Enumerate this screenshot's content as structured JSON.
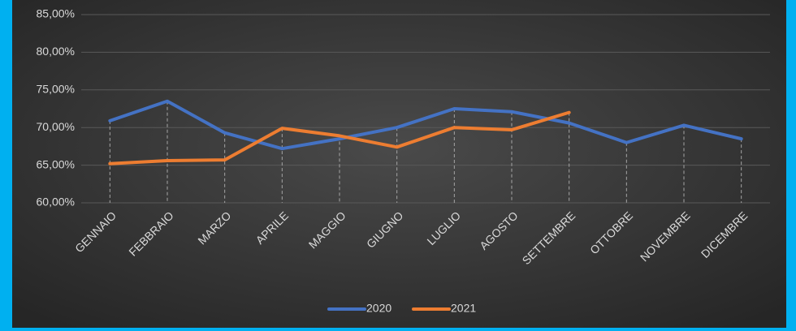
{
  "chart_data": {
    "type": "line",
    "categories": [
      "GENNAIO",
      "FEBBRAIO",
      "MARZO",
      "APRILE",
      "MAGGIO",
      "GIUGNO",
      "LUGLIO",
      "AGOSTO",
      "SETTEMBRE",
      "OTTOBRE",
      "NOVEMBRE",
      "DICEMBRE"
    ],
    "series": [
      {
        "name": "2020",
        "color": "#4472c4",
        "values": [
          70.9,
          73.5,
          69.3,
          67.2,
          68.5,
          70.0,
          72.5,
          72.1,
          70.6,
          68.0,
          70.3,
          68.5
        ]
      },
      {
        "name": "2021",
        "color": "#ed7d31",
        "values": [
          65.2,
          65.6,
          65.7,
          69.9,
          68.9,
          67.4,
          70.0,
          69.7,
          72.0,
          null,
          null,
          null
        ]
      }
    ],
    "ylim": [
      60,
      85
    ],
    "yticks": [
      {
        "value": 60,
        "label": "60,00%"
      },
      {
        "value": 65,
        "label": "65,00%"
      },
      {
        "value": 70,
        "label": "70,00%"
      },
      {
        "value": 75,
        "label": "75,00%"
      },
      {
        "value": 80,
        "label": "80,00%"
      },
      {
        "value": 85,
        "label": "85,00%"
      }
    ],
    "grid": true,
    "legend": "bottom"
  }
}
